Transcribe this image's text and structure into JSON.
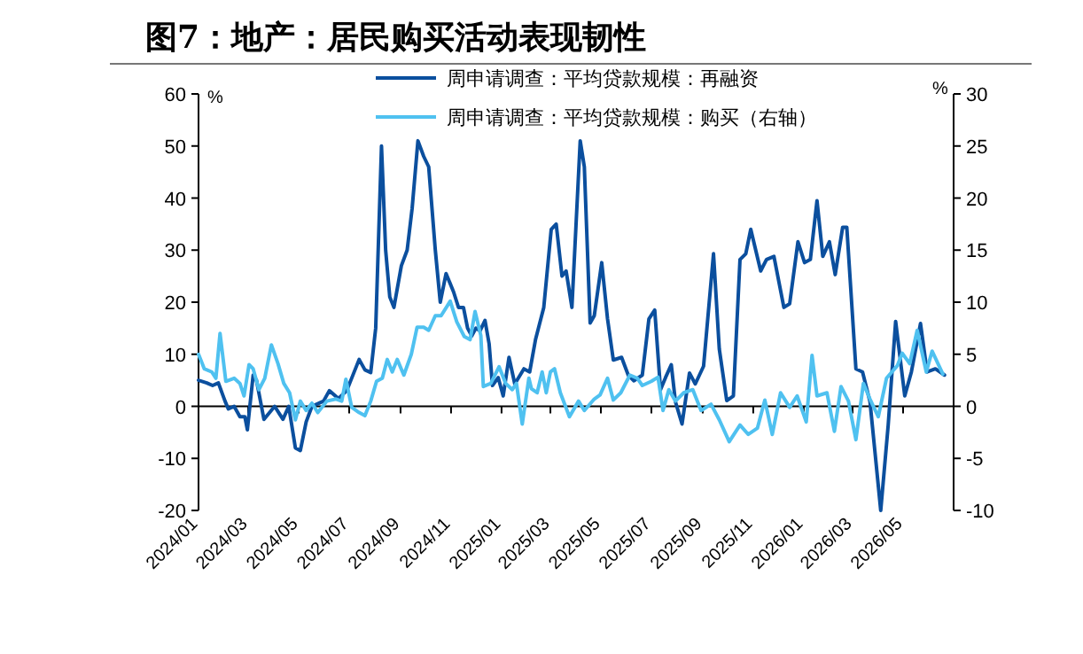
{
  "chart_data": {
    "type": "line",
    "title": "图7：地产：居民购买活动表现韧性",
    "ylabel": "%",
    "y2label": "%",
    "xlim": [
      "2024-01-01",
      "2026-07-01"
    ],
    "ylim": [
      -20,
      60
    ],
    "y2lim": [
      -10,
      30
    ],
    "xticks": [
      {
        "value": "2024-01",
        "label": "2024/01"
      },
      {
        "value": "2024-03",
        "label": "2024/03"
      },
      {
        "value": "2024-05",
        "label": "2024/05"
      },
      {
        "value": "2024-07",
        "label": "2024/07"
      },
      {
        "value": "2024-09",
        "label": "2024/09"
      },
      {
        "value": "2024-11",
        "label": "2024/11"
      },
      {
        "value": "2025-01",
        "label": "2025/01"
      },
      {
        "value": "2025-03",
        "label": "2025/03"
      },
      {
        "value": "2025-05",
        "label": "2025/05"
      },
      {
        "value": "2025-07",
        "label": "2025/07"
      },
      {
        "value": "2025-09",
        "label": "2025/09"
      },
      {
        "value": "2025-11",
        "label": "2025/11"
      },
      {
        "value": "2026-01",
        "label": "2026/01"
      },
      {
        "value": "2026-03",
        "label": "2026/03"
      },
      {
        "value": "2026-05",
        "label": "2026/05"
      }
    ],
    "yticks": [
      -20,
      -10,
      0,
      10,
      20,
      30,
      40,
      50,
      60
    ],
    "y2ticks": [
      -10,
      -5,
      0,
      5,
      10,
      15,
      20,
      25,
      30
    ],
    "legend": "top",
    "series": [
      {
        "name": "周申请调查：平均贷款规模：再融资",
        "color": "#0b4f9e",
        "x": [
          "2024-01-01",
          "2024-01-11",
          "2024-01-18",
          "2024-01-25",
          "2024-02-02",
          "2024-02-06",
          "2024-02-13",
          "2024-02-20",
          "2024-02-26",
          "2024-02-29",
          "2024-03-07",
          "2024-03-11",
          "2024-03-20",
          "2024-04-02",
          "2024-04-08",
          "2024-04-12",
          "2024-04-19",
          "2024-04-27",
          "2024-05-03",
          "2024-05-10",
          "2024-05-17",
          "2024-05-24",
          "2024-05-31",
          "2024-06-07",
          "2024-06-18",
          "2024-06-28",
          "2024-07-13",
          "2024-07-20",
          "2024-07-27",
          "2024-08-02",
          "2024-08-09",
          "2024-08-14",
          "2024-08-19",
          "2024-08-24",
          "2024-09-02",
          "2024-09-09",
          "2024-09-15",
          "2024-09-22",
          "2024-09-29",
          "2024-10-05",
          "2024-10-13",
          "2024-10-19",
          "2024-10-26",
          "2024-11-04",
          "2024-11-10",
          "2024-11-16",
          "2024-11-21",
          "2024-11-26",
          "2024-12-01",
          "2024-12-06",
          "2024-12-12",
          "2024-12-17",
          "2024-12-21",
          "2024-12-28",
          "2025-01-03",
          "2025-01-10",
          "2025-01-17",
          "2025-01-28",
          "2025-02-04",
          "2025-02-11",
          "2025-02-21",
          "2025-03-02",
          "2025-03-08",
          "2025-03-15",
          "2025-03-20",
          "2025-03-27",
          "2025-04-06",
          "2025-04-11",
          "2025-04-18",
          "2025-04-23",
          "2025-05-02",
          "2025-05-09",
          "2025-05-16",
          "2025-05-26",
          "2025-06-03",
          "2025-06-10",
          "2025-06-20",
          "2025-06-28",
          "2025-07-05",
          "2025-07-12",
          "2025-07-18",
          "2025-07-25",
          "2025-07-30",
          "2025-08-07",
          "2025-08-16",
          "2025-08-23",
          "2025-09-02",
          "2025-09-14",
          "2025-09-21",
          "2025-09-30",
          "2025-10-08",
          "2025-10-16",
          "2025-10-23",
          "2025-10-29",
          "2025-11-10",
          "2025-11-17",
          "2025-11-26",
          "2025-12-08",
          "2025-12-15",
          "2025-12-25",
          "2026-01-02",
          "2026-01-09",
          "2026-01-17",
          "2026-01-24",
          "2026-02-01",
          "2026-02-08",
          "2026-02-17",
          "2026-02-22",
          "2026-03-05",
          "2026-03-13",
          "2026-03-22",
          "2026-04-04",
          "2026-04-13",
          "2026-04-22",
          "2026-05-03",
          "2026-05-11",
          "2026-05-22",
          "2026-05-30",
          "2026-06-09",
          "2026-06-20"
        ],
        "values": [
          5,
          4.5,
          4,
          4.5,
          1,
          -0.5,
          0,
          -2,
          -2,
          -4.5,
          6,
          5,
          -2.5,
          0,
          -1.5,
          -2.5,
          0,
          -8,
          -8.5,
          -3,
          0,
          0.5,
          1,
          3,
          1.5,
          3,
          9,
          7,
          6.5,
          15,
          50,
          30,
          21,
          19,
          27,
          30,
          38,
          51,
          48,
          46,
          30,
          20,
          25.5,
          22,
          19,
          19,
          15,
          13.5,
          15,
          14.5,
          16.5,
          12,
          4,
          5.5,
          2,
          9.4,
          4.3,
          7.2,
          6.6,
          12.8,
          19,
          34,
          35,
          25,
          26,
          19,
          51,
          46,
          16,
          17.4,
          27.6,
          16.8,
          8.9,
          9.4,
          6,
          4.9,
          6,
          16.8,
          18.5,
          3.2,
          5.5,
          8,
          0.9,
          -3.4,
          6.4,
          4.3,
          7.7,
          29.3,
          11,
          1.1,
          2,
          28.2,
          29.3,
          34,
          26,
          28.2,
          28.8,
          19,
          19.7,
          31.6,
          27.6,
          28.2,
          39.5,
          28.8,
          31.6,
          25.3,
          34.4,
          34.4,
          7.2,
          6.6,
          0.9,
          -20,
          -3.6,
          16.3,
          2,
          6.6,
          15.9,
          6.6,
          7.2,
          6
        ]
      },
      {
        "name": "周申请调查：平均贷款规模：购买（右轴）",
        "color": "#4fc1f0",
        "axis": "y2",
        "x": [
          "2024-01-01",
          "2024-01-08",
          "2024-01-17",
          "2024-01-22",
          "2024-01-27",
          "2024-02-03",
          "2024-02-13",
          "2024-02-20",
          "2024-02-25",
          "2024-03-02",
          "2024-03-07",
          "2024-03-14",
          "2024-03-21",
          "2024-03-29",
          "2024-04-06",
          "2024-04-13",
          "2024-04-20",
          "2024-04-27",
          "2024-05-03",
          "2024-05-10",
          "2024-05-17",
          "2024-05-24",
          "2024-06-04",
          "2024-06-15",
          "2024-06-22",
          "2024-06-27",
          "2024-07-04",
          "2024-07-13",
          "2024-07-20",
          "2024-07-27",
          "2024-08-03",
          "2024-08-10",
          "2024-08-16",
          "2024-08-22",
          "2024-08-28",
          "2024-09-05",
          "2024-09-14",
          "2024-09-21",
          "2024-09-29",
          "2024-10-05",
          "2024-10-13",
          "2024-10-20",
          "2024-10-31",
          "2024-11-08",
          "2024-11-17",
          "2024-11-24",
          "2024-11-30",
          "2024-12-07",
          "2024-12-10",
          "2024-12-19",
          "2024-12-29",
          "2025-01-06",
          "2025-01-14",
          "2025-01-19",
          "2025-01-26",
          "2025-02-03",
          "2025-02-06",
          "2025-02-13",
          "2025-02-19",
          "2025-02-24",
          "2025-03-01",
          "2025-03-06",
          "2025-03-13",
          "2025-03-24",
          "2025-04-04",
          "2025-04-11",
          "2025-04-23",
          "2025-04-30",
          "2025-05-09",
          "2025-05-16",
          "2025-05-25",
          "2025-06-05",
          "2025-06-14",
          "2025-06-20",
          "2025-07-01",
          "2025-07-09",
          "2025-07-15",
          "2025-07-22",
          "2025-07-30",
          "2025-08-09",
          "2025-08-20",
          "2025-08-30",
          "2025-09-11",
          "2025-09-21",
          "2025-10-03",
          "2025-10-16",
          "2025-10-26",
          "2025-11-06",
          "2025-11-15",
          "2025-11-24",
          "2025-12-04",
          "2025-12-15",
          "2025-12-24",
          "2026-01-04",
          "2026-01-11",
          "2026-01-17",
          "2026-01-29",
          "2026-02-07",
          "2026-02-15",
          "2026-02-24",
          "2026-03-05",
          "2026-03-14",
          "2026-03-22",
          "2026-04-01",
          "2026-04-11",
          "2026-04-24",
          "2026-04-30",
          "2026-05-09",
          "2026-05-18",
          "2026-05-29",
          "2026-06-05",
          "2026-06-18"
        ],
        "values": [
          5,
          3.6,
          3.3,
          2.7,
          7,
          2.4,
          2.7,
          2.2,
          1,
          4,
          3.6,
          1.6,
          2.7,
          5.9,
          4.1,
          2.2,
          1.3,
          -1.3,
          0.5,
          -0.4,
          0.3,
          -0.6,
          0.5,
          0.7,
          0.5,
          2.6,
          -0.1,
          -0.6,
          -0.9,
          0.5,
          2.4,
          2.7,
          4.5,
          3.3,
          4.5,
          3,
          5,
          7.6,
          7.6,
          7.3,
          8.7,
          8.7,
          10.1,
          8.1,
          6.7,
          6.4,
          9.1,
          6.8,
          1.9,
          2.2,
          3.8,
          2.2,
          1.6,
          2.2,
          -1.7,
          2.7,
          1.7,
          1.3,
          3.3,
          1.3,
          3.3,
          3.6,
          1.3,
          -1,
          0.5,
          -0.4,
          0.7,
          1.1,
          2.7,
          0.6,
          1.3,
          3,
          2.7,
          2,
          2.4,
          2.8,
          -0.4,
          1.6,
          0.5,
          1.3,
          1.6,
          -0.4,
          0.2,
          -1.3,
          -3.4,
          -1.8,
          -2.7,
          -2.1,
          0.6,
          -2.7,
          1.3,
          -0.1,
          1,
          -1.5,
          4.9,
          1,
          1.3,
          -2.4,
          1.9,
          0.5,
          -3.2,
          2.2,
          0.7,
          -1,
          2.7,
          3.9,
          5.1,
          4.1,
          7.3,
          3.3,
          5.3,
          3.1
        ]
      }
    ]
  }
}
